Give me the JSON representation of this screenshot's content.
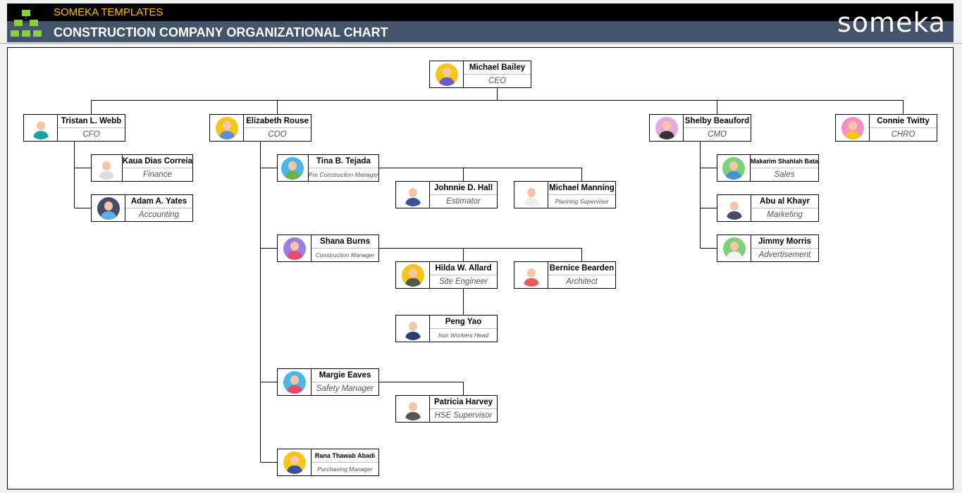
{
  "header": {
    "brand": "SOMEKA TEMPLATES",
    "title": "CONSTRUCTION COMPANY ORGANIZATIONAL CHART",
    "logo": "someka"
  },
  "nodes": [
    {
      "name": "Michael Bailey",
      "role": "CEO",
      "avatar_color": "#f5c518",
      "shirt": "#6a5acd"
    },
    {
      "name": "Tristan L. Webb",
      "role": "CFO",
      "avatar_color": "#ffffff",
      "shirt": "#1aa3a3"
    },
    {
      "name": "Elizabeth Rouse",
      "role": "COO",
      "avatar_color": "#f5c518",
      "shirt": "#5b8fd6"
    },
    {
      "name": "Shelby Beauford",
      "role": "CMO",
      "avatar_color": "#e9a8e0",
      "shirt": "#333333"
    },
    {
      "name": "Connie Twitty",
      "role": "CHRO",
      "avatar_color": "#f58fc9",
      "shirt": "#f5c518"
    },
    {
      "name": "Kaua Dias Correia",
      "role": "Finance",
      "avatar_color": "#ffffff",
      "shirt": "#dddddd"
    },
    {
      "name": "Adam A. Yates",
      "role": "Accounting",
      "avatar_color": "#4a4a6a",
      "shirt": "#5bb0e8"
    },
    {
      "name": "Tina B. Tejada",
      "role": "Pre Construction Manager",
      "avatar_color": "#4db6e8",
      "shirt": "#6ab04c"
    },
    {
      "name": "Johnnie D. Hall",
      "role": "Estimator",
      "avatar_color": "#ffffff",
      "shirt": "#3b4fa0"
    },
    {
      "name": "Michael Manning",
      "role": "Planning Supervisor",
      "avatar_color": "#ffffff",
      "shirt": "#eeeeee"
    },
    {
      "name": "Shana Burns",
      "role": "Construction Manager",
      "avatar_color": "#9b7fe0",
      "shirt": "#e84a6a"
    },
    {
      "name": "Hilda W. Allard",
      "role": "Site Engineer",
      "avatar_color": "#f5c518",
      "shirt": "#555555"
    },
    {
      "name": "Bernice Bearden",
      "role": "Architect",
      "avatar_color": "#ffffff",
      "shirt": "#e85a5a"
    },
    {
      "name": "Peng Yao",
      "role": "Iron Workers Head",
      "avatar_color": "#ffffff",
      "shirt": "#2c3e70"
    },
    {
      "name": "Margie Eaves",
      "role": "Safety Manager",
      "avatar_color": "#4db6e8",
      "shirt": "#e84a6a"
    },
    {
      "name": "Patricia Harvey",
      "role": "HSE Supervisor",
      "avatar_color": "#ffffff",
      "shirt": "#555555"
    },
    {
      "name": "Rana Thawab Abadi",
      "role": "Purchasing Manager",
      "avatar_color": "#f5c518",
      "shirt": "#3b4fa0"
    },
    {
      "name": "Makarim Shahlah Bata",
      "role": "Sales",
      "avatar_color": "#7ed07e",
      "shirt": "#4a90d9"
    },
    {
      "name": "Abu al Khayr",
      "role": "Marketing",
      "avatar_color": "#ffffff",
      "shirt": "#4a4a6a"
    },
    {
      "name": "Jimmy Morris",
      "role": "Advertisement",
      "avatar_color": "#7ed07e",
      "shirt": "#f5f5f5"
    }
  ]
}
